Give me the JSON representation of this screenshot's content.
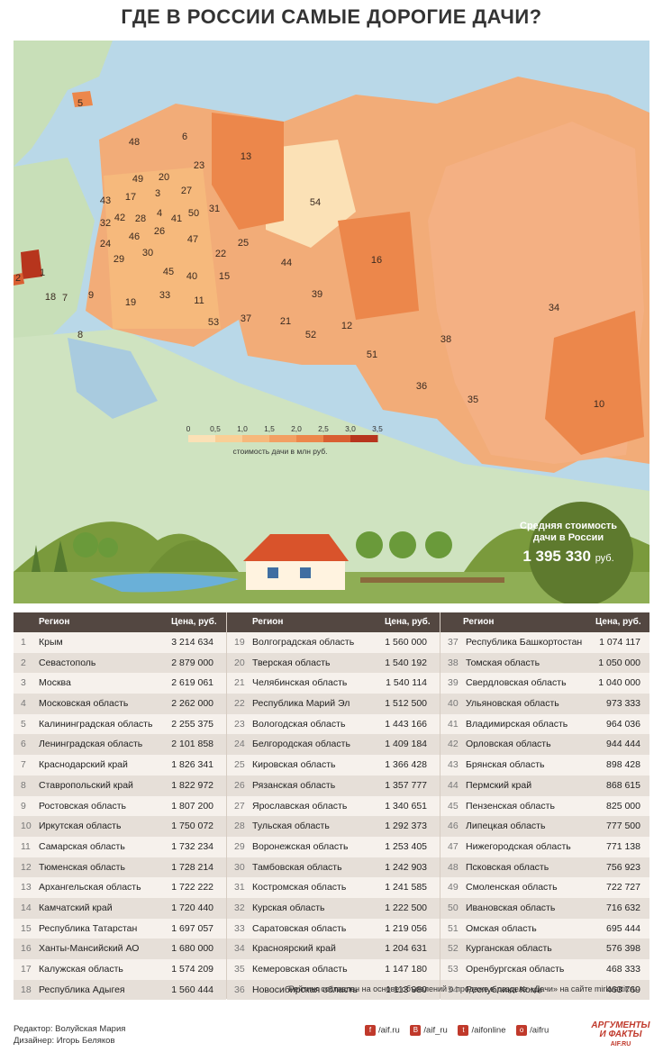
{
  "title": "ГДЕ В РОССИИ САМЫЕ ДОРОГИЕ ДАЧИ?",
  "legend": {
    "ticks": [
      "0",
      "0,5",
      "1,0",
      "1,5",
      "2,0",
      "2,5",
      "3,0",
      "3,5"
    ],
    "caption": "стоимость дачи в млн руб.",
    "colors": [
      "#fbe1b6",
      "#f9cf96",
      "#f6b97c",
      "#f2a063",
      "#ec874b",
      "#d95f32",
      "#b7351d"
    ]
  },
  "average": {
    "label": "Средняя стоимость дачи в России",
    "value": "1 395 330",
    "unit": "руб."
  },
  "table": {
    "headers": {
      "region": "Регион",
      "price": "Цена, руб."
    },
    "rows": [
      [
        "1",
        "Крым",
        "3 214 634"
      ],
      [
        "2",
        "Севастополь",
        "2 879 000"
      ],
      [
        "3",
        "Москва",
        "2 619 061"
      ],
      [
        "4",
        "Московская область",
        "2 262 000"
      ],
      [
        "5",
        "Калининградская область",
        "2 255 375"
      ],
      [
        "6",
        "Ленинградская область",
        "2 101 858"
      ],
      [
        "7",
        "Краснодарский край",
        "1 826 341"
      ],
      [
        "8",
        "Ставропольский край",
        "1 822 972"
      ],
      [
        "9",
        "Ростовская область",
        "1 807 200"
      ],
      [
        "10",
        "Иркутская область",
        "1 750 072"
      ],
      [
        "11",
        "Самарская область",
        "1 732 234"
      ],
      [
        "12",
        "Тюменская область",
        "1 728 214"
      ],
      [
        "13",
        "Архангельская область",
        "1 722 222"
      ],
      [
        "14",
        "Камчатский край",
        "1 720 440"
      ],
      [
        "15",
        "Республика Татарстан",
        "1 697 057"
      ],
      [
        "16",
        "Ханты-Мансийский АО",
        "1 680 000"
      ],
      [
        "17",
        "Калужская область",
        "1 574 209"
      ],
      [
        "18",
        "Республика Адыгея",
        "1 560 444"
      ],
      [
        "19",
        "Волгоградская область",
        "1 560 000"
      ],
      [
        "20",
        "Тверская область",
        "1 540 192"
      ],
      [
        "21",
        "Челябинская область",
        "1 540 114"
      ],
      [
        "22",
        "Республика Марий Эл",
        "1 512 500"
      ],
      [
        "23",
        "Вологодская область",
        "1 443 166"
      ],
      [
        "24",
        "Белгородская область",
        "1 409 184"
      ],
      [
        "25",
        "Кировская область",
        "1 366 428"
      ],
      [
        "26",
        "Рязанская область",
        "1 357 777"
      ],
      [
        "27",
        "Ярославская область",
        "1 340 651"
      ],
      [
        "28",
        "Тульская область",
        "1 292 373"
      ],
      [
        "29",
        "Воронежская область",
        "1 253 405"
      ],
      [
        "30",
        "Тамбовская область",
        "1 242 903"
      ],
      [
        "31",
        "Костромская область",
        "1 241 585"
      ],
      [
        "32",
        "Курская область",
        "1 222 500"
      ],
      [
        "33",
        "Саратовская область",
        "1 219 056"
      ],
      [
        "34",
        "Красноярский край",
        "1 204 631"
      ],
      [
        "35",
        "Кемеровская область",
        "1 147 180"
      ],
      [
        "36",
        "Новосибирская область",
        "1 113 980"
      ],
      [
        "37",
        "Республика Башкортостан",
        "1 074 117"
      ],
      [
        "38",
        "Томская область",
        "1 050 000"
      ],
      [
        "39",
        "Свердловская область",
        "1 040 000"
      ],
      [
        "40",
        "Ульяновская область",
        "973 333"
      ],
      [
        "41",
        "Владимирская область",
        "964 036"
      ],
      [
        "42",
        "Орловская область",
        "944 444"
      ],
      [
        "43",
        "Брянская область",
        "898 428"
      ],
      [
        "44",
        "Пермский край",
        "868 615"
      ],
      [
        "45",
        "Пензенская область",
        "825 000"
      ],
      [
        "46",
        "Липецкая область",
        "777 500"
      ],
      [
        "47",
        "Нижегородская область",
        "771 138"
      ],
      [
        "48",
        "Псковская область",
        "756 923"
      ],
      [
        "49",
        "Смоленская область",
        "722 727"
      ],
      [
        "50",
        "Ивановская область",
        "716 632"
      ],
      [
        "51",
        "Омская область",
        "695 444"
      ],
      [
        "52",
        "Курганская область",
        "576 398"
      ],
      [
        "53",
        "Оренбургская область",
        "468 333"
      ],
      [
        "54",
        "Республика Коми",
        "463 769"
      ]
    ],
    "note": "Рейтинг составлен на основе объявлений о продаже в разделе «Дачи» на сайте mirkvartir.ru"
  },
  "credits": {
    "editor": "Редактор: Волуйская Мария",
    "designer": "Дизайнер: Игорь Беляков"
  },
  "socials": [
    {
      "icon": "f",
      "label": "/aif.ru"
    },
    {
      "icon": "B",
      "label": "/aif_ru"
    },
    {
      "icon": "t",
      "label": "/aifonline"
    },
    {
      "icon": "o",
      "label": "/aifru"
    }
  ],
  "brand": {
    "name": "АРГУМЕНТЫ И ФАКТЫ",
    "site": "AIF.RU"
  },
  "chart_data": {
    "type": "table",
    "title": "ГДЕ В РОССИИ САМЫЕ ДОРОГИЕ ДАЧИ?",
    "columns": [
      "Регион",
      "Цена, руб."
    ],
    "legend_range_mln": [
      0,
      3.5
    ],
    "values_rub": [
      3214634,
      2879000,
      2619061,
      2262000,
      2255375,
      2101858,
      1826341,
      1822972,
      1807200,
      1750072,
      1732234,
      1728214,
      1722222,
      1720440,
      1697057,
      1680000,
      1574209,
      1560444,
      1560000,
      1540192,
      1540114,
      1512500,
      1443166,
      1409184,
      1366428,
      1357777,
      1340651,
      1292373,
      1253405,
      1242903,
      1241585,
      1222500,
      1219056,
      1204631,
      1147180,
      1113980,
      1074117,
      1050000,
      1040000,
      973333,
      964036,
      944444,
      898428,
      868615,
      825000,
      777500,
      771138,
      756923,
      722727,
      716632,
      695444,
      576398,
      468333,
      463769
    ]
  }
}
